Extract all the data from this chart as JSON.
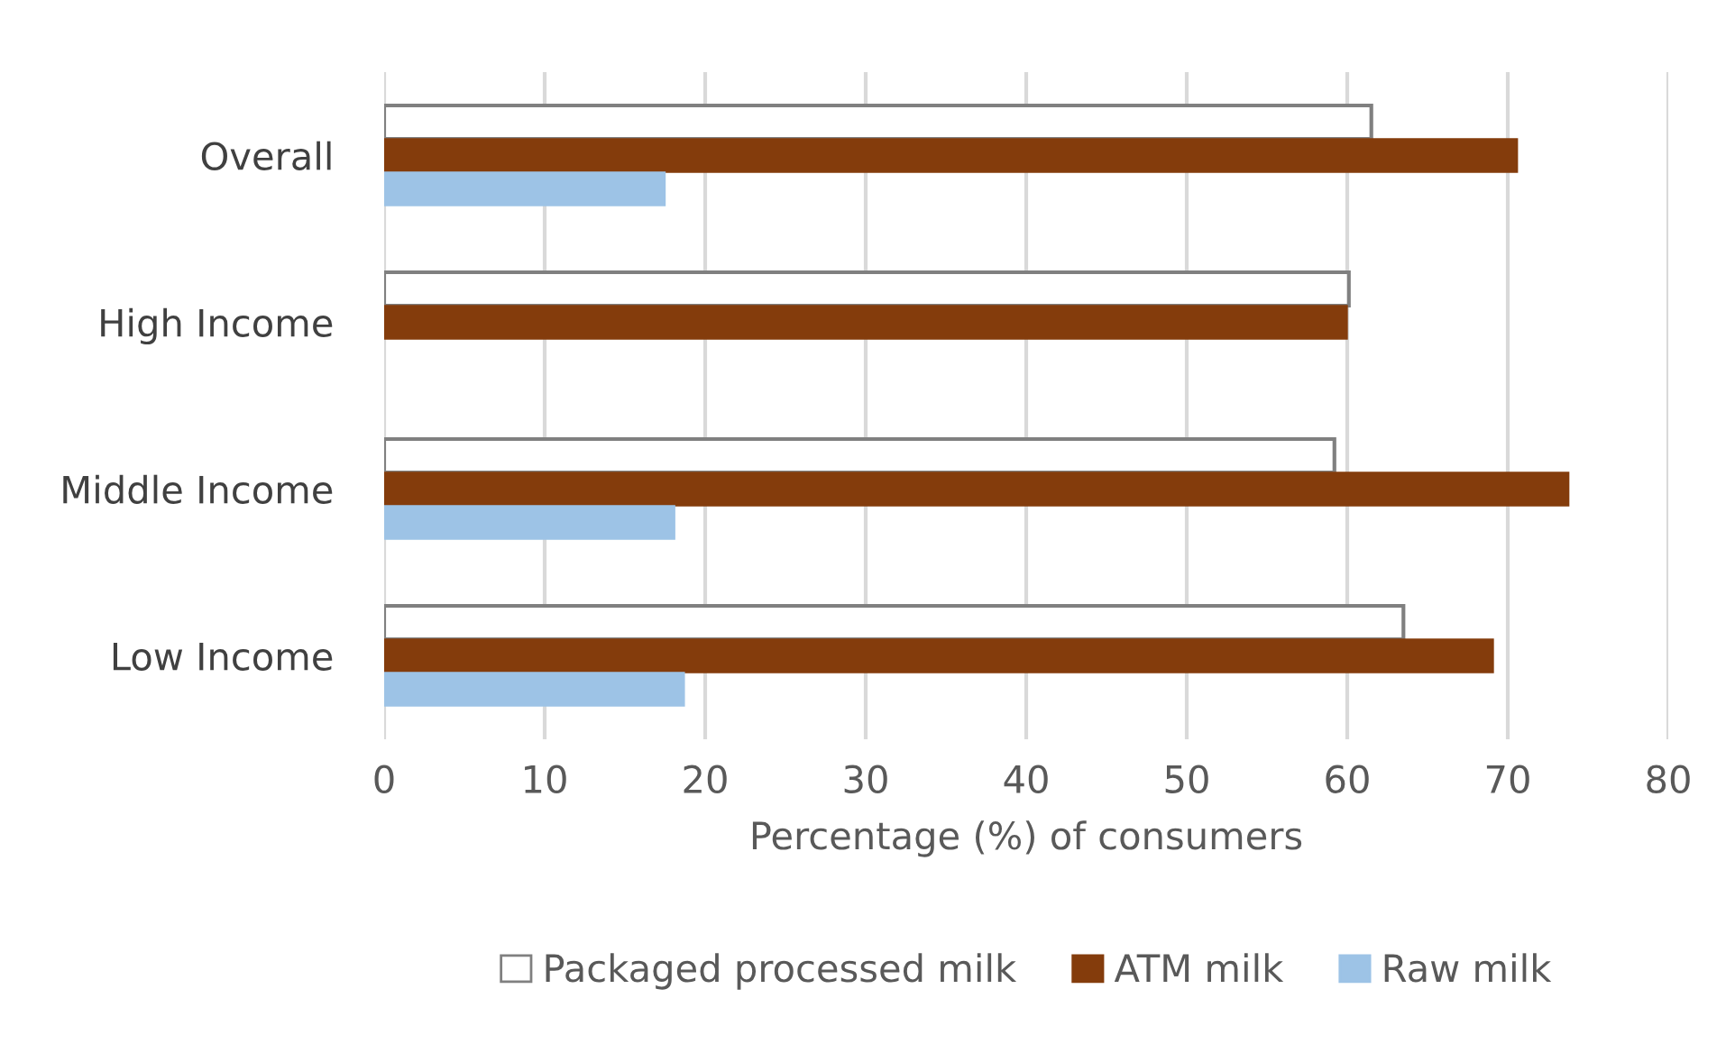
{
  "chart_data": {
    "type": "bar",
    "orientation": "horizontal",
    "xlabel": "Percentage (%) of consumers",
    "categories": [
      "Overall",
      "High Income",
      "Middle Income",
      "Low Income"
    ],
    "series": [
      {
        "name": "Packaged processed milk",
        "color": "#808080",
        "values": [
          61.5,
          60.1,
          59.2,
          63.5
        ]
      },
      {
        "name": "ATM milk",
        "color": "#843c0c",
        "values": [
          70.6,
          60.0,
          73.8,
          69.1
        ]
      },
      {
        "name": "Raw milk",
        "color": "#9dc3e6",
        "values": [
          17.5,
          null,
          18.1,
          18.7
        ]
      }
    ],
    "xlim": [
      0,
      80
    ],
    "xticks": [
      0,
      10,
      20,
      30,
      40,
      50,
      60,
      70,
      80
    ],
    "grid": "x",
    "legend": "bottom"
  }
}
